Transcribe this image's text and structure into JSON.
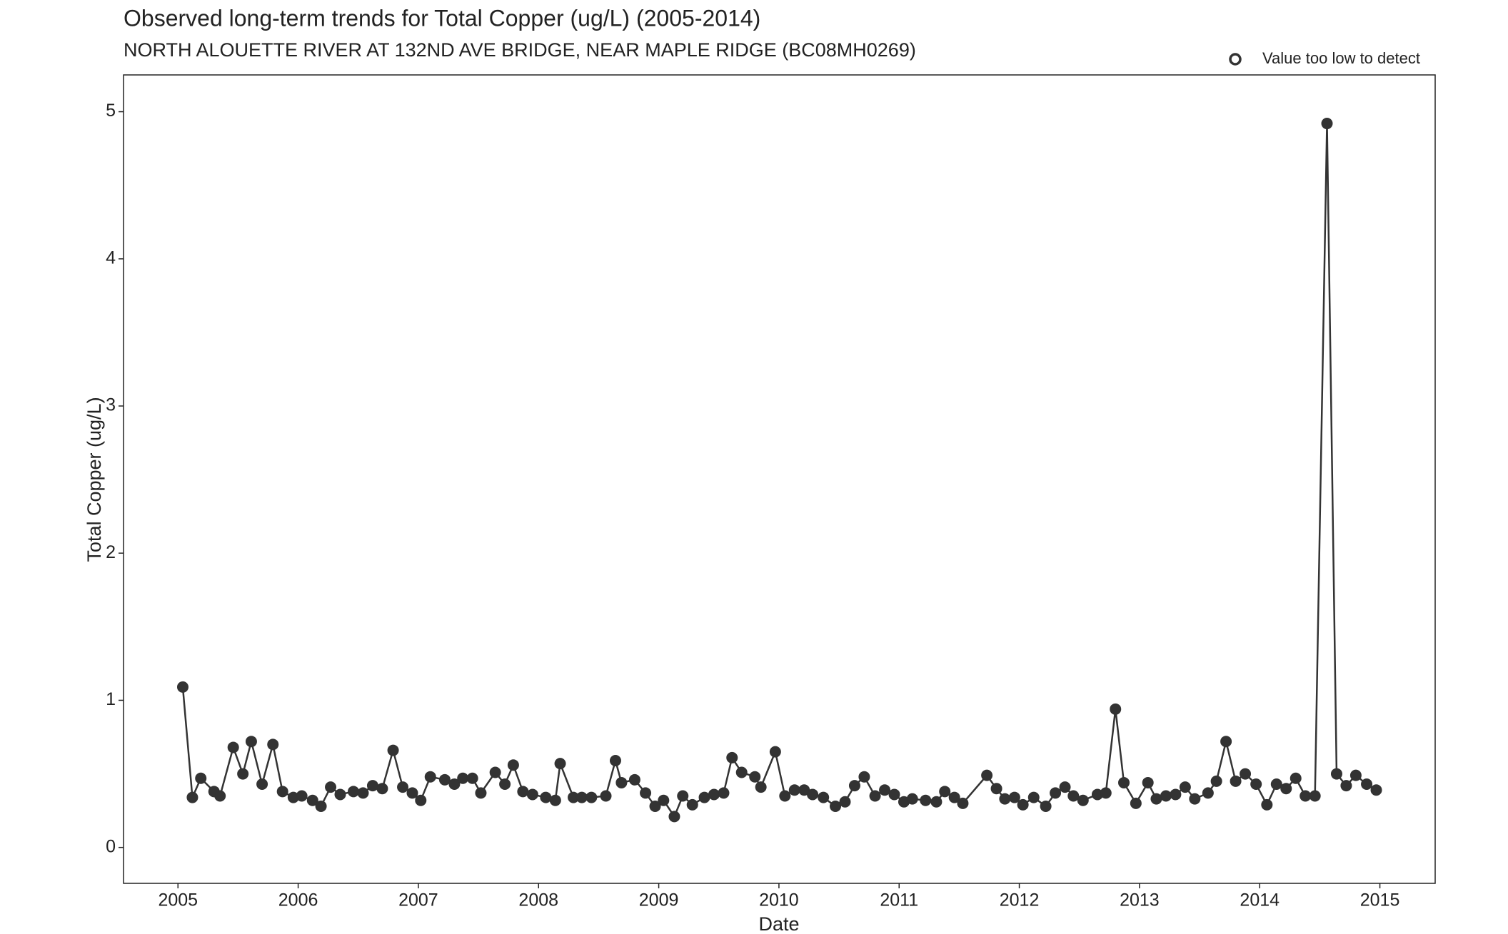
{
  "chart_data": {
    "type": "line",
    "title": "Observed long-term trends for Total Copper (ug/L) (2005-2014)",
    "subtitle": "NORTH ALOUETTE RIVER AT 132ND AVE BRIDGE, NEAR MAPLE RIDGE (BC08MH0269)",
    "x_label": "Date",
    "y_label": "Total Copper (ug/L)",
    "xlim": [
      2004.547,
      2015.46
    ],
    "xticks": [
      2005,
      2006,
      2007,
      2008,
      2009,
      2010,
      2011,
      2012,
      2013,
      2014,
      2015
    ],
    "ylim": [
      -0.244,
      5.25
    ],
    "yticks": [
      0,
      1,
      2,
      3,
      4,
      5
    ],
    "series": [
      {
        "color": "#333333",
        "marker": "filled",
        "x": [
          2005.04,
          2005.12,
          2005.19,
          2005.3,
          2005.35,
          2005.46,
          2005.54,
          2005.61,
          2005.7,
          2005.79,
          2005.87,
          2005.96,
          2006.03,
          2006.12,
          2006.19,
          2006.27,
          2006.35,
          2006.46,
          2006.54,
          2006.62,
          2006.7,
          2006.79,
          2006.87,
          2006.95,
          2007.02,
          2007.1,
          2007.22,
          2007.3,
          2007.37,
          2007.45,
          2007.52,
          2007.64,
          2007.72,
          2007.79,
          2007.87,
          2007.95,
          2008.06,
          2008.14,
          2008.18,
          2008.29,
          2008.36,
          2008.44,
          2008.56,
          2008.64,
          2008.69,
          2008.8,
          2008.89,
          2008.97,
          2009.04,
          2009.13,
          2009.2,
          2009.28,
          2009.38,
          2009.46,
          2009.54,
          2009.61,
          2009.69,
          2009.8,
          2009.85,
          2009.97,
          2010.05,
          2010.13,
          2010.21,
          2010.28,
          2010.37,
          2010.47,
          2010.55,
          2010.63,
          2010.71,
          2010.8,
          2010.88,
          2010.96,
          2011.04,
          2011.11,
          2011.22,
          2011.31,
          2011.38,
          2011.46,
          2011.53,
          2011.73,
          2011.81,
          2011.88,
          2011.96,
          2012.03,
          2012.12,
          2012.22,
          2012.3,
          2012.38,
          2012.45,
          2012.53,
          2012.65,
          2012.72,
          2012.8,
          2012.87,
          2012.97,
          2013.07,
          2013.14,
          2013.22,
          2013.3,
          2013.38,
          2013.46,
          2013.57,
          2013.64,
          2013.72,
          2013.8,
          2013.88,
          2013.97,
          2014.06,
          2014.14,
          2014.22,
          2014.3,
          2014.38,
          2014.46,
          2014.56,
          2014.64,
          2014.72,
          2014.8,
          2014.89,
          2014.97
        ],
        "values": [
          1.09,
          0.34,
          0.47,
          0.38,
          0.35,
          0.68,
          0.5,
          0.72,
          0.43,
          0.7,
          0.38,
          0.34,
          0.35,
          0.32,
          0.28,
          0.41,
          0.36,
          0.38,
          0.37,
          0.42,
          0.4,
          0.66,
          0.41,
          0.37,
          0.32,
          0.48,
          0.46,
          0.43,
          0.47,
          0.47,
          0.37,
          0.51,
          0.43,
          0.56,
          0.38,
          0.36,
          0.34,
          0.32,
          0.57,
          0.34,
          0.34,
          0.34,
          0.35,
          0.59,
          0.44,
          0.46,
          0.37,
          0.28,
          0.32,
          0.21,
          0.35,
          0.29,
          0.34,
          0.36,
          0.37,
          0.61,
          0.51,
          0.48,
          0.41,
          0.65,
          0.35,
          0.39,
          0.39,
          0.36,
          0.34,
          0.28,
          0.31,
          0.42,
          0.48,
          0.35,
          0.39,
          0.36,
          0.31,
          0.33,
          0.32,
          0.31,
          0.38,
          0.34,
          0.3,
          0.49,
          0.4,
          0.33,
          0.34,
          0.29,
          0.34,
          0.28,
          0.37,
          0.41,
          0.35,
          0.32,
          0.36,
          0.37,
          0.94,
          0.44,
          0.3,
          0.44,
          0.33,
          0.35,
          0.36,
          0.41,
          0.33,
          0.37,
          0.45,
          0.72,
          0.45,
          0.5,
          0.43,
          0.29,
          0.43,
          0.4,
          0.47,
          0.35,
          0.35,
          4.92,
          0.5,
          0.42,
          0.49,
          0.43,
          0.39
        ]
      },
      {
        "name": "Value too low to detect",
        "color": "#333333",
        "marker": "hollow",
        "x": [],
        "values": []
      }
    ]
  }
}
